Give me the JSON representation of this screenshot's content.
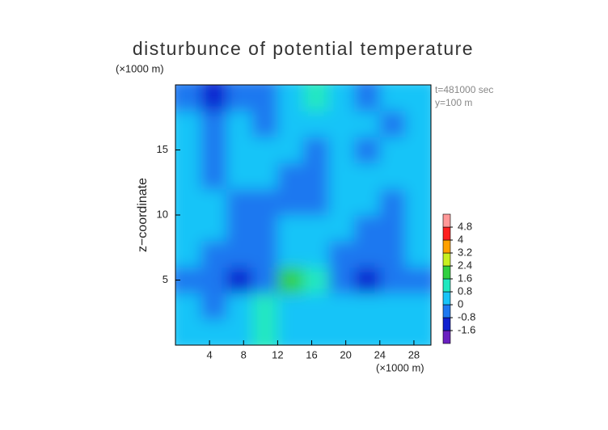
{
  "chart_data": {
    "type": "heatmap",
    "title": "disturbunce of potential temperature",
    "y_unit": "(×1000 m)",
    "x_unit": "(×1000 m)",
    "y_label": "z−coordinate",
    "annotations": [
      "t=481000 sec",
      "y=100 m"
    ],
    "xlim": [
      0,
      30
    ],
    "ylim": [
      0,
      20
    ],
    "xticks": [
      4,
      8,
      12,
      16,
      20,
      24,
      28
    ],
    "yticks": [
      5,
      10,
      15
    ],
    "x": [
      1.5,
      4.5,
      7.5,
      10.5,
      13.5,
      16.5,
      19.5,
      22.5,
      25.5,
      28.5
    ],
    "y": [
      1,
      3,
      5,
      7,
      9,
      11,
      13,
      15,
      17,
      19
    ],
    "values": [
      [
        0.2,
        0.1,
        0.3,
        0.9,
        0.3,
        0.1,
        0.2,
        0.2,
        0.4,
        0.3
      ],
      [
        0.1,
        -0.3,
        0.2,
        0.8,
        0.2,
        0.2,
        0.1,
        0.3,
        0.5,
        0.6
      ],
      [
        -0.3,
        -0.6,
        -1.0,
        -0.6,
        1.8,
        1.2,
        -0.5,
        -0.9,
        -0.6,
        -0.2
      ],
      [
        0.1,
        -0.2,
        -0.5,
        -0.3,
        0.2,
        0.3,
        -0.1,
        -0.6,
        -0.3,
        0.1
      ],
      [
        0.2,
        0.1,
        -0.2,
        -0.4,
        0.1,
        0.0,
        0.2,
        -0.2,
        -0.1,
        0.2
      ],
      [
        0.1,
        0.3,
        -0.2,
        -0.3,
        -0.2,
        -0.4,
        0.1,
        0.2,
        -0.2,
        0.1
      ],
      [
        0.2,
        -0.1,
        0.3,
        0.1,
        -0.5,
        -0.3,
        0.2,
        0.1,
        0.2,
        0.0
      ],
      [
        0.1,
        -0.2,
        0.3,
        0.0,
        0.1,
        -0.2,
        0.3,
        -0.1,
        0.1,
        0.2
      ],
      [
        0.0,
        -0.1,
        0.2,
        -0.2,
        0.3,
        0.1,
        0.2,
        0.3,
        -0.1,
        0.1
      ],
      [
        -0.6,
        -1.1,
        -0.8,
        -0.3,
        0.2,
        0.8,
        0.3,
        -0.4,
        0.1,
        0.4
      ]
    ],
    "levels": [
      -2.4,
      -1.6,
      -0.8,
      0,
      0.8,
      1.6,
      2.4,
      3.2,
      4,
      4.8,
      5.6
    ],
    "colors": [
      "#6a20c0",
      "#1020d0",
      "#1e78f0",
      "#18c4f8",
      "#20e8c0",
      "#30d040",
      "#c8f020",
      "#ffa000",
      "#ff2020",
      "#ff9898"
    ],
    "colorbar_ticks": [
      -1.6,
      -0.8,
      0,
      0.8,
      1.6,
      2.4,
      3.2,
      4,
      4.8
    ]
  }
}
